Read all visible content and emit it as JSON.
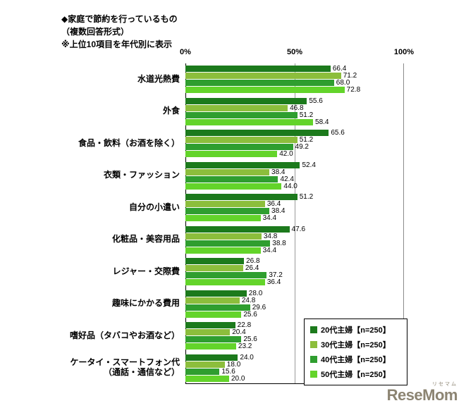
{
  "title": {
    "line1": "◆家庭で節約を行っているもの",
    "line2": "（複数回答形式）",
    "line3": "※上位10項目を年代別に表示"
  },
  "axis": {
    "ticks": [
      {
        "label": "0%",
        "pos": 0
      },
      {
        "label": "50%",
        "pos": 50
      },
      {
        "label": "100%",
        "pos": 100
      }
    ]
  },
  "chart_data": {
    "type": "bar",
    "orientation": "horizontal",
    "xlim": [
      0,
      100
    ],
    "grid": "vertical line at 50% and 100%",
    "legend_position": "bottom-right inside plot, boxed",
    "categories": [
      "水道光熱費",
      "外食",
      "食品・飲料（お酒を除く）",
      "衣類・ファッション",
      "自分の小遣い",
      "化粧品・美容用品",
      "レジャー・交際費",
      "趣味にかかる費用",
      "嗜好品（タバコやお酒など）",
      "ケータイ・スマートフォン代\n（通話・通信など）"
    ],
    "series": [
      {
        "name": "20代主婦【n=250】",
        "color": "#1c7a1c",
        "values": [
          66.4,
          55.6,
          65.6,
          52.4,
          51.2,
          47.6,
          26.8,
          28.0,
          22.8,
          24.0
        ]
      },
      {
        "name": "30代主婦【n=250】",
        "color": "#8cbe3c",
        "values": [
          71.2,
          46.8,
          51.2,
          38.4,
          36.4,
          34.8,
          26.4,
          24.8,
          20.4,
          18.0
        ]
      },
      {
        "name": "40代主婦【n=250】",
        "color": "#2f9e2f",
        "values": [
          68.0,
          51.2,
          49.2,
          42.4,
          38.4,
          38.8,
          37.2,
          29.6,
          25.6,
          15.6
        ]
      },
      {
        "name": "50代主婦【n=250】",
        "color": "#63d42a",
        "values": [
          72.8,
          58.4,
          42.0,
          44.0,
          34.4,
          34.4,
          36.4,
          25.6,
          23.2,
          20.0
        ]
      }
    ]
  },
  "logo": {
    "text": "ReseMom",
    "sub": "リセマム"
  }
}
